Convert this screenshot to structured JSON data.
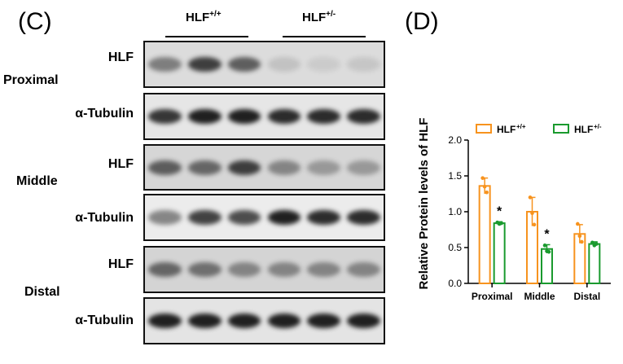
{
  "panel_c": {
    "label": "(C)",
    "groups": [
      {
        "name": "HLF",
        "sup": "+/+"
      },
      {
        "name": "HLF",
        "sup": "+/-"
      }
    ],
    "regions": [
      "Proximal",
      "Middle",
      "Distal"
    ],
    "rows": [
      {
        "region": "Proximal",
        "label": "HLF",
        "band_intensity": [
          0.45,
          0.75,
          0.6,
          0.12,
          0.08,
          0.1
        ],
        "background": "#dcdcdc"
      },
      {
        "region": "Proximal",
        "label": "α-Tubulin",
        "band_intensity": [
          0.8,
          0.9,
          0.9,
          0.85,
          0.85,
          0.85
        ],
        "background": "#e6e6e6"
      },
      {
        "region": "Middle",
        "label": "HLF",
        "band_intensity": [
          0.6,
          0.55,
          0.75,
          0.4,
          0.3,
          0.3
        ],
        "background": "#d6d6d6"
      },
      {
        "region": "Middle",
        "label": "α-Tubulin",
        "band_intensity": [
          0.45,
          0.75,
          0.7,
          0.9,
          0.85,
          0.85
        ],
        "background": "#ececec"
      },
      {
        "region": "Distal",
        "label": "HLF",
        "band_intensity": [
          0.55,
          0.5,
          0.4,
          0.4,
          0.4,
          0.4
        ],
        "background": "#d4d4d4"
      },
      {
        "region": "Distal",
        "label": "α-Tubulin",
        "band_intensity": [
          0.9,
          0.9,
          0.9,
          0.9,
          0.9,
          0.9
        ],
        "background": "#e4e4e4"
      }
    ]
  },
  "panel_d": {
    "label": "(D)"
  },
  "chart_data": {
    "type": "bar",
    "title": "",
    "ylabel": "Relative Protein  levels of HLF",
    "xlabel": "",
    "categories": [
      "Proximal",
      "Middle",
      "Distal"
    ],
    "ylim": [
      0,
      2.0
    ],
    "yticks": [
      "0.0",
      "0.5",
      "1.0",
      "1.5",
      "2.0"
    ],
    "ytick_values": [
      0,
      0.5,
      1.0,
      1.5,
      2.0
    ],
    "legend_position": "top",
    "series": [
      {
        "name": "HLF",
        "sup": "+/+",
        "color": "#f7931e",
        "values": [
          1.36,
          1.0,
          0.69
        ],
        "errors": [
          0.11,
          0.2,
          0.13
        ],
        "points": [
          [
            1.47,
            1.35,
            1.27
          ],
          [
            1.2,
            0.98,
            0.82
          ],
          [
            0.83,
            0.66,
            0.58
          ]
        ]
      },
      {
        "name": "HLF",
        "sup": "+/-",
        "color": "#1a9a2e",
        "values": [
          0.84,
          0.48,
          0.55
        ],
        "errors": [
          0.02,
          0.06,
          0.03
        ],
        "points": [
          [
            0.85,
            0.83,
            0.84
          ],
          [
            0.53,
            0.45,
            0.44
          ],
          [
            0.57,
            0.53,
            0.55
          ]
        ]
      }
    ],
    "annotations": [
      "*",
      "*"
    ]
  }
}
